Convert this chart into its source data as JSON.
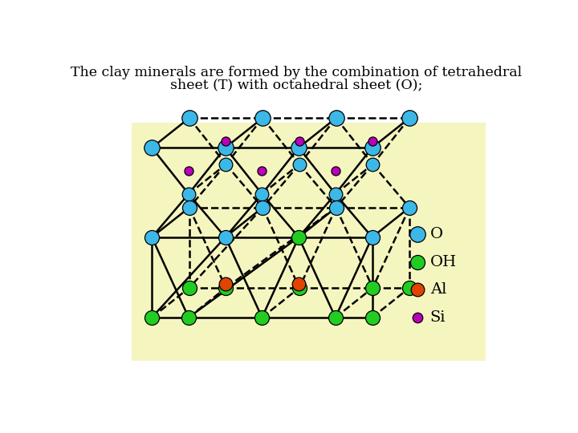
{
  "title_line1": "The clay minerals are formed by the combination of tetrahedral",
  "title_line2": "sheet (T) with octahedral sheet (O);",
  "title_fontsize": 12.5,
  "box_color": "#f5f5c0",
  "fig_bg": "#ffffff",
  "colors": {
    "O": "#3cb8e8",
    "OH": "#22cc22",
    "Al": "#e04400",
    "Si": "#bb00bb"
  },
  "legend_items": [
    {
      "label": "O",
      "color": "#3cb8e8"
    },
    {
      "label": "OH",
      "color": "#22cc22"
    },
    {
      "label": "Al",
      "color": "#e04400"
    },
    {
      "label": "Si",
      "color": "#bb00bb"
    }
  ]
}
